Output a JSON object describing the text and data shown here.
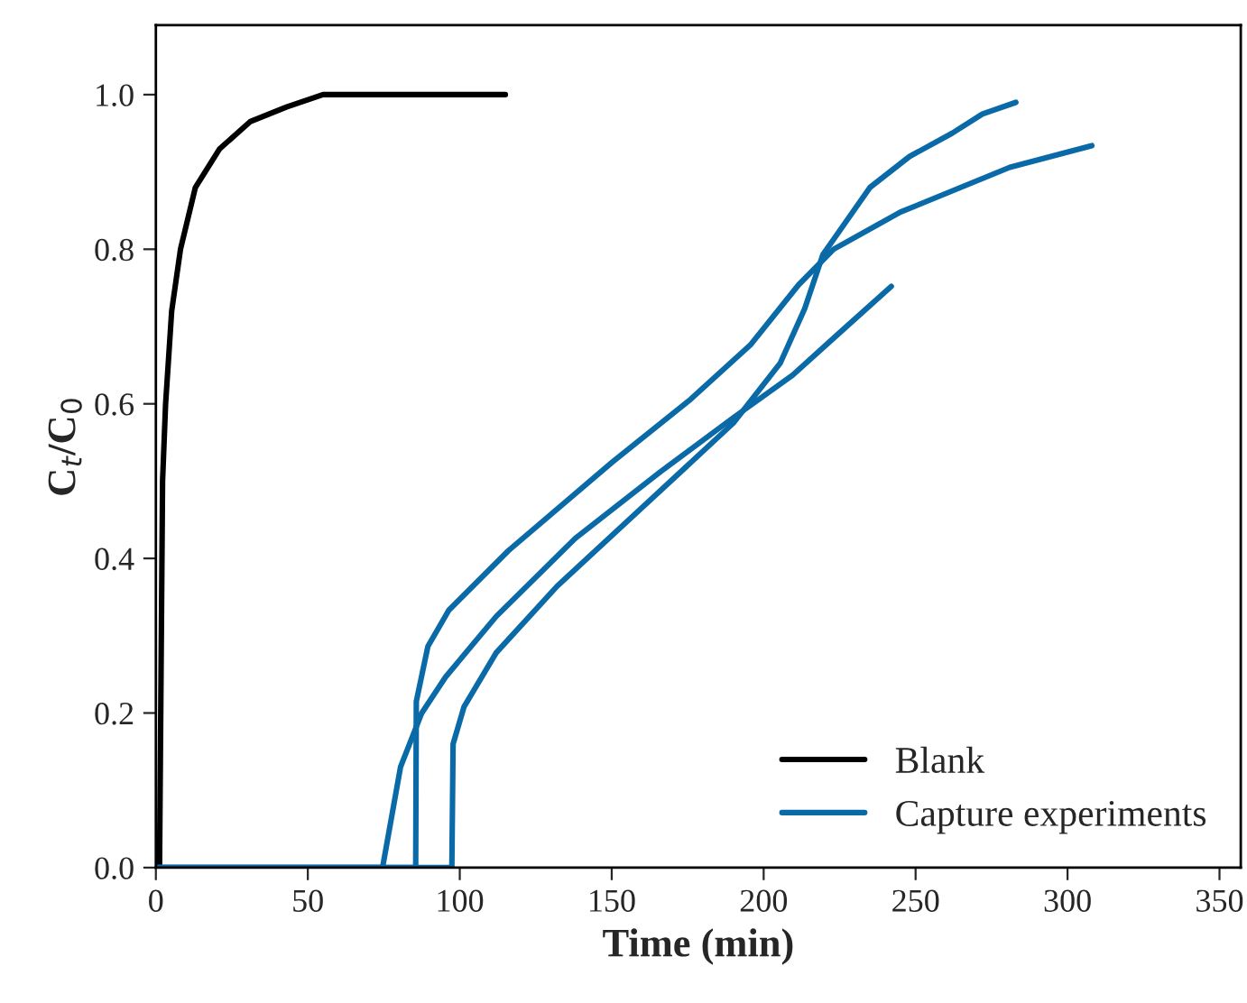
{
  "chart_data": {
    "type": "line",
    "xlabel": "Time (min)",
    "ylabel": "C$_{t}$/C$_{0}$",
    "xlim": [
      0,
      357
    ],
    "ylim": [
      0,
      1.09
    ],
    "xticks": [
      0,
      50,
      100,
      150,
      200,
      250,
      300,
      350
    ],
    "yticks": [
      {
        "value": 0,
        "label": "0.0"
      },
      {
        "value": 0.2,
        "label": "0.2"
      },
      {
        "value": 0.4,
        "label": "0.4"
      },
      {
        "value": 0.6,
        "label": "0.6"
      },
      {
        "value": 0.8,
        "label": "0.8"
      },
      {
        "value": 1.0,
        "label": "1.0"
      }
    ],
    "grid": false,
    "legend": "bottom right",
    "marker": "none",
    "line_style": "solid",
    "series": [
      {
        "name": "Blank",
        "color": "#000000",
        "x": [
          0,
          1.2,
          2.2,
          3.2,
          5.2,
          8.1,
          13,
          21,
          31,
          43,
          55,
          115
        ],
        "values": [
          0,
          0,
          0.5,
          0.6,
          0.72,
          0.8,
          0.88,
          0.93,
          0.965,
          0.984,
          1.0,
          1.0
        ]
      },
      {
        "name": "Capture experiments",
        "color": "#0a6aa8",
        "x": [
          0,
          74.6,
          80.5,
          87.5,
          95.4,
          112,
          138,
          166,
          190,
          209.5,
          225,
          242
        ],
        "values": [
          0,
          0,
          0.13,
          0.2,
          0.247,
          0.325,
          0.426,
          0.512,
          0.582,
          0.637,
          0.692,
          0.752
        ]
      },
      {
        "color": "#0a6aa8",
        "x": [
          0,
          85.5,
          85.7,
          89.5,
          96.4,
          116,
          150,
          176,
          195.6,
          211.5,
          223,
          245,
          281,
          308
        ],
        "values": [
          0,
          0,
          0.215,
          0.286,
          0.333,
          0.41,
          0.524,
          0.606,
          0.676,
          0.754,
          0.8,
          0.848,
          0.906,
          0.934
        ]
      },
      {
        "color": "#0a6aa8",
        "x": [
          0,
          97.4,
          97.8,
          101.4,
          112,
          132,
          162,
          190,
          205.5,
          213.5,
          219.5,
          235,
          248,
          262,
          272,
          283
        ],
        "values": [
          0,
          0,
          0.16,
          0.208,
          0.278,
          0.364,
          0.473,
          0.575,
          0.653,
          0.723,
          0.793,
          0.88,
          0.92,
          0.95,
          0.975,
          0.99
        ]
      }
    ]
  }
}
